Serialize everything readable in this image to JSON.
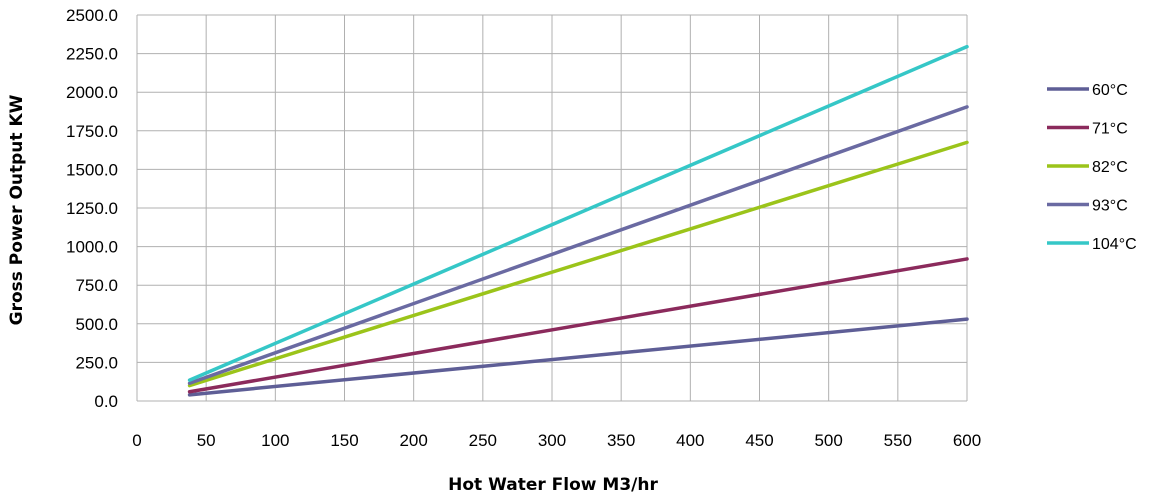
{
  "chart_data": {
    "type": "line",
    "title": "",
    "xlabel": "Hot Water Flow M3/hr",
    "ylabel": "Gross Power Output KW",
    "xlim": [
      0,
      600
    ],
    "ylim": [
      0,
      2500
    ],
    "x_ticks": [
      "0",
      "50",
      "100",
      "150",
      "200",
      "250",
      "300",
      "350",
      "400",
      "450",
      "500",
      "550",
      "600"
    ],
    "y_ticks": [
      "0.0",
      "250.0",
      "500.0",
      "750.0",
      "1000.0",
      "1250.0",
      "1500.0",
      "1750.0",
      "2000.0",
      "2250.0",
      "2500.0"
    ],
    "grid": true,
    "legend_position": "right",
    "x": [
      38,
      600
    ],
    "series": [
      {
        "name": "60°C",
        "color": "#5e5e96",
        "values": [
          40,
          530
        ]
      },
      {
        "name": "71°C",
        "color": "#8b2a5c",
        "values": [
          60,
          920
        ]
      },
      {
        "name": "82°C",
        "color": "#9bc41a",
        "values": [
          100,
          1675
        ]
      },
      {
        "name": "93°C",
        "color": "#6a6aa2",
        "values": [
          115,
          1905
        ]
      },
      {
        "name": "104°C",
        "color": "#35c7c7",
        "values": [
          135,
          2295
        ]
      }
    ]
  }
}
